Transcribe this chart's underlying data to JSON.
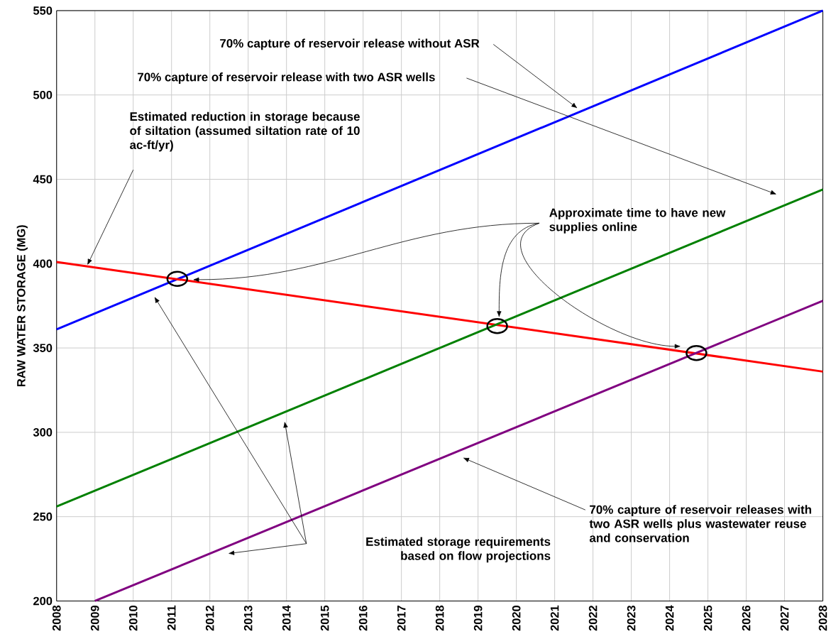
{
  "chart_data": {
    "type": "line",
    "ylabel": "RAW WATER STORAGE (MG)",
    "xlim": [
      2008,
      2028
    ],
    "xticks": [
      2008,
      2009,
      2010,
      2011,
      2012,
      2013,
      2014,
      2015,
      2016,
      2017,
      2018,
      2019,
      2020,
      2021,
      2022,
      2023,
      2024,
      2025,
      2026,
      2027,
      2028
    ],
    "ylim": [
      200,
      550
    ],
    "yticks": [
      200,
      250,
      300,
      350,
      400,
      450,
      500,
      550
    ],
    "grid": true,
    "line_style": "solid",
    "marker": "none",
    "series": [
      {
        "color": "#0000ff",
        "x": [
          2008,
          2028
        ],
        "values": [
          361,
          550
        ]
      },
      {
        "color": "#ff0000",
        "x": [
          2008,
          2028
        ],
        "values": [
          401,
          336
        ]
      },
      {
        "color": "#008000",
        "x": [
          2008,
          2028
        ],
        "values": [
          256,
          444
        ]
      },
      {
        "color": "#800080",
        "x": [
          2009,
          2028
        ],
        "values": [
          200,
          378
        ]
      }
    ],
    "annotations": [
      "70% capture of reservoir release without ASR",
      "70% capture of reservoir release with two ASR wells",
      "Estimated reduction in storage because of siltation (assumed siltation rate of 10 ac-ft/yr)",
      "Approximate time to have new supplies online",
      "Estimated storage requirements based on flow projections",
      "70% capture of reservoir releases with two ASR wells plus wastewater reuse and conservation"
    ]
  }
}
